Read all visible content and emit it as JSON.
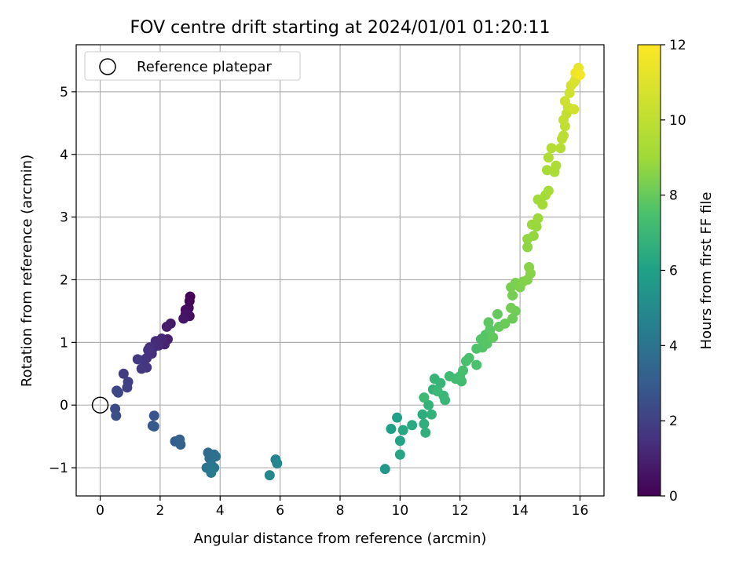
{
  "chart_data": {
    "type": "scatter",
    "title": "FOV centre drift starting at 2024/01/01 01:20:11",
    "xlabel": "Angular distance from reference (arcmin)",
    "ylabel": "Rotation from reference (arcmin)",
    "xlim": [
      -0.8,
      16.8
    ],
    "ylim": [
      -1.45,
      5.75
    ],
    "xticks": [
      0,
      2,
      4,
      6,
      8,
      10,
      12,
      14,
      16
    ],
    "yticks": [
      -1,
      0,
      1,
      2,
      3,
      4,
      5
    ],
    "xtick_labels": [
      "0",
      "2",
      "4",
      "6",
      "8",
      "10",
      "12",
      "14",
      "16"
    ],
    "ytick_labels": [
      "−1",
      "0",
      "1",
      "2",
      "3",
      "4",
      "5"
    ],
    "grid": true,
    "legend": {
      "location": "upper-left",
      "label": "Reference platepar"
    },
    "colorbar": {
      "label": "Hours from first FF file",
      "range": [
        0,
        12
      ],
      "ticks": [
        0,
        2,
        4,
        6,
        8,
        10,
        12
      ],
      "tick_labels": [
        "0",
        "2",
        "4",
        "6",
        "8",
        "10",
        "12"
      ],
      "colormap": "viridis"
    },
    "reference_point": {
      "x": 0,
      "y": 0,
      "marker": "open-circle",
      "color": "#000000"
    },
    "points": [
      {
        "x": 3.0,
        "y": 1.73,
        "t": 0.05
      },
      {
        "x": 2.98,
        "y": 1.66,
        "t": 0.15
      },
      {
        "x": 2.95,
        "y": 1.55,
        "t": 0.25
      },
      {
        "x": 2.85,
        "y": 1.52,
        "t": 0.35
      },
      {
        "x": 2.98,
        "y": 1.42,
        "t": 0.45
      },
      {
        "x": 2.85,
        "y": 1.45,
        "t": 0.55
      },
      {
        "x": 2.78,
        "y": 1.38,
        "t": 0.65
      },
      {
        "x": 2.35,
        "y": 1.3,
        "t": 0.75
      },
      {
        "x": 2.22,
        "y": 1.25,
        "t": 0.85
      },
      {
        "x": 2.25,
        "y": 1.05,
        "t": 0.95
      },
      {
        "x": 2.15,
        "y": 0.97,
        "t": 1.05
      },
      {
        "x": 2.05,
        "y": 1.06,
        "t": 1.15
      },
      {
        "x": 1.95,
        "y": 0.95,
        "t": 1.25
      },
      {
        "x": 1.85,
        "y": 1.02,
        "t": 1.3
      },
      {
        "x": 1.78,
        "y": 0.92,
        "t": 1.35
      },
      {
        "x": 1.65,
        "y": 0.92,
        "t": 1.4
      },
      {
        "x": 1.72,
        "y": 0.82,
        "t": 1.45
      },
      {
        "x": 1.6,
        "y": 0.88,
        "t": 1.5
      },
      {
        "x": 1.55,
        "y": 0.75,
        "t": 1.55
      },
      {
        "x": 1.45,
        "y": 0.72,
        "t": 1.6
      },
      {
        "x": 1.55,
        "y": 0.6,
        "t": 1.65
      },
      {
        "x": 1.38,
        "y": 0.58,
        "t": 1.7
      },
      {
        "x": 1.25,
        "y": 0.73,
        "t": 1.75
      },
      {
        "x": 0.78,
        "y": 0.5,
        "t": 1.85
      },
      {
        "x": 0.93,
        "y": 0.37,
        "t": 1.95
      },
      {
        "x": 0.9,
        "y": 0.28,
        "t": 2.05
      },
      {
        "x": 0.55,
        "y": 0.23,
        "t": 2.15
      },
      {
        "x": 0.6,
        "y": 0.2,
        "t": 2.25
      },
      {
        "x": 0.5,
        "y": -0.06,
        "t": 2.4
      },
      {
        "x": 0.53,
        "y": -0.17,
        "t": 2.5
      },
      {
        "x": 1.8,
        "y": -0.17,
        "t": 2.7
      },
      {
        "x": 1.75,
        "y": -0.33,
        "t": 2.8
      },
      {
        "x": 1.8,
        "y": -0.34,
        "t": 2.9
      },
      {
        "x": 2.5,
        "y": -0.58,
        "t": 3.1
      },
      {
        "x": 2.65,
        "y": -0.55,
        "t": 3.2
      },
      {
        "x": 2.68,
        "y": -0.63,
        "t": 3.3
      },
      {
        "x": 3.6,
        "y": -0.76,
        "t": 3.6
      },
      {
        "x": 3.65,
        "y": -0.85,
        "t": 3.7
      },
      {
        "x": 3.8,
        "y": -0.79,
        "t": 3.8
      },
      {
        "x": 3.85,
        "y": -0.82,
        "t": 3.9
      },
      {
        "x": 3.55,
        "y": -1.0,
        "t": 4.0
      },
      {
        "x": 3.7,
        "y": -0.95,
        "t": 4.1
      },
      {
        "x": 3.8,
        "y": -1.0,
        "t": 4.2
      },
      {
        "x": 3.7,
        "y": -1.08,
        "t": 4.3
      },
      {
        "x": 5.85,
        "y": -0.87,
        "t": 4.6
      },
      {
        "x": 5.9,
        "y": -0.93,
        "t": 4.75
      },
      {
        "x": 5.65,
        "y": -1.12,
        "t": 4.9
      },
      {
        "x": 9.5,
        "y": -1.02,
        "t": 5.6
      },
      {
        "x": 9.7,
        "y": -0.38,
        "t": 5.9
      },
      {
        "x": 9.9,
        "y": -0.2,
        "t": 6.0
      },
      {
        "x": 10.0,
        "y": -0.57,
        "t": 6.1
      },
      {
        "x": 10.0,
        "y": -0.79,
        "t": 6.2
      },
      {
        "x": 10.1,
        "y": -0.4,
        "t": 6.3
      },
      {
        "x": 10.4,
        "y": -0.32,
        "t": 6.4
      },
      {
        "x": 10.75,
        "y": -0.15,
        "t": 6.5
      },
      {
        "x": 10.8,
        "y": -0.3,
        "t": 6.6
      },
      {
        "x": 10.85,
        "y": -0.44,
        "t": 6.65
      },
      {
        "x": 11.05,
        "y": -0.15,
        "t": 6.7
      },
      {
        "x": 10.95,
        "y": 0.0,
        "t": 6.75
      },
      {
        "x": 11.1,
        "y": 0.25,
        "t": 6.8
      },
      {
        "x": 11.15,
        "y": 0.42,
        "t": 6.85
      },
      {
        "x": 11.35,
        "y": 0.35,
        "t": 6.9
      },
      {
        "x": 11.45,
        "y": 0.15,
        "t": 6.95
      },
      {
        "x": 11.5,
        "y": 0.08,
        "t": 7.0
      },
      {
        "x": 11.25,
        "y": 0.22,
        "t": 7.05
      },
      {
        "x": 10.8,
        "y": 0.12,
        "t": 7.1
      },
      {
        "x": 11.65,
        "y": 0.46,
        "t": 7.15
      },
      {
        "x": 11.85,
        "y": 0.42,
        "t": 7.2
      },
      {
        "x": 12.05,
        "y": 0.38,
        "t": 7.25
      },
      {
        "x": 12.0,
        "y": 0.46,
        "t": 7.3
      },
      {
        "x": 12.1,
        "y": 0.55,
        "t": 7.35
      },
      {
        "x": 12.2,
        "y": 0.7,
        "t": 7.4
      },
      {
        "x": 12.3,
        "y": 0.75,
        "t": 7.45
      },
      {
        "x": 12.55,
        "y": 0.64,
        "t": 7.5
      },
      {
        "x": 12.55,
        "y": 0.9,
        "t": 7.55
      },
      {
        "x": 12.75,
        "y": 0.92,
        "t": 7.6
      },
      {
        "x": 12.7,
        "y": 1.05,
        "t": 7.65
      },
      {
        "x": 12.85,
        "y": 1.12,
        "t": 7.7
      },
      {
        "x": 12.9,
        "y": 0.98,
        "t": 7.75
      },
      {
        "x": 13.0,
        "y": 1.2,
        "t": 7.8
      },
      {
        "x": 12.95,
        "y": 1.32,
        "t": 7.85
      },
      {
        "x": 13.1,
        "y": 1.08,
        "t": 7.9
      },
      {
        "x": 13.25,
        "y": 1.45,
        "t": 7.95
      },
      {
        "x": 13.3,
        "y": 1.25,
        "t": 8.0
      },
      {
        "x": 13.5,
        "y": 1.3,
        "t": 8.05
      },
      {
        "x": 13.75,
        "y": 1.38,
        "t": 8.1
      },
      {
        "x": 13.85,
        "y": 1.5,
        "t": 8.15
      },
      {
        "x": 13.7,
        "y": 1.55,
        "t": 8.2
      },
      {
        "x": 13.75,
        "y": 1.75,
        "t": 8.25
      },
      {
        "x": 13.7,
        "y": 1.88,
        "t": 8.3
      },
      {
        "x": 13.85,
        "y": 1.95,
        "t": 8.35
      },
      {
        "x": 14.0,
        "y": 1.88,
        "t": 8.4
      },
      {
        "x": 14.1,
        "y": 1.97,
        "t": 8.45
      },
      {
        "x": 14.25,
        "y": 2.0,
        "t": 8.5
      },
      {
        "x": 14.35,
        "y": 2.1,
        "t": 8.55
      },
      {
        "x": 14.3,
        "y": 2.2,
        "t": 8.6
      },
      {
        "x": 14.25,
        "y": 2.52,
        "t": 8.7
      },
      {
        "x": 14.25,
        "y": 2.65,
        "t": 8.75
      },
      {
        "x": 14.45,
        "y": 2.7,
        "t": 8.8
      },
      {
        "x": 14.55,
        "y": 2.85,
        "t": 8.85
      },
      {
        "x": 14.4,
        "y": 2.88,
        "t": 8.9
      },
      {
        "x": 14.6,
        "y": 2.98,
        "t": 8.95
      },
      {
        "x": 14.6,
        "y": 3.28,
        "t": 9.05
      },
      {
        "x": 14.75,
        "y": 3.2,
        "t": 9.1
      },
      {
        "x": 14.85,
        "y": 3.35,
        "t": 9.15
      },
      {
        "x": 14.95,
        "y": 3.42,
        "t": 9.2
      },
      {
        "x": 14.9,
        "y": 3.75,
        "t": 9.3
      },
      {
        "x": 15.15,
        "y": 3.72,
        "t": 9.4
      },
      {
        "x": 15.2,
        "y": 3.82,
        "t": 9.45
      },
      {
        "x": 14.95,
        "y": 3.95,
        "t": 9.5
      },
      {
        "x": 15.05,
        "y": 4.1,
        "t": 9.6
      },
      {
        "x": 15.35,
        "y": 4.1,
        "t": 9.7
      },
      {
        "x": 15.4,
        "y": 4.25,
        "t": 9.8
      },
      {
        "x": 15.45,
        "y": 4.3,
        "t": 9.9
      },
      {
        "x": 15.5,
        "y": 4.45,
        "t": 10.0
      },
      {
        "x": 15.45,
        "y": 4.55,
        "t": 10.1
      },
      {
        "x": 15.55,
        "y": 4.65,
        "t": 10.2
      },
      {
        "x": 15.6,
        "y": 4.75,
        "t": 10.3
      },
      {
        "x": 15.5,
        "y": 4.85,
        "t": 10.4
      },
      {
        "x": 15.65,
        "y": 4.98,
        "t": 10.5
      },
      {
        "x": 15.8,
        "y": 4.72,
        "t": 10.6
      },
      {
        "x": 15.7,
        "y": 5.1,
        "t": 10.7
      },
      {
        "x": 15.8,
        "y": 5.15,
        "t": 10.8
      },
      {
        "x": 15.85,
        "y": 5.2,
        "t": 10.9
      },
      {
        "x": 15.9,
        "y": 5.3,
        "t": 11.1
      },
      {
        "x": 15.95,
        "y": 5.38,
        "t": 11.3
      },
      {
        "x": 15.85,
        "y": 5.3,
        "t": 11.5
      },
      {
        "x": 16.0,
        "y": 5.27,
        "t": 11.7
      }
    ]
  }
}
